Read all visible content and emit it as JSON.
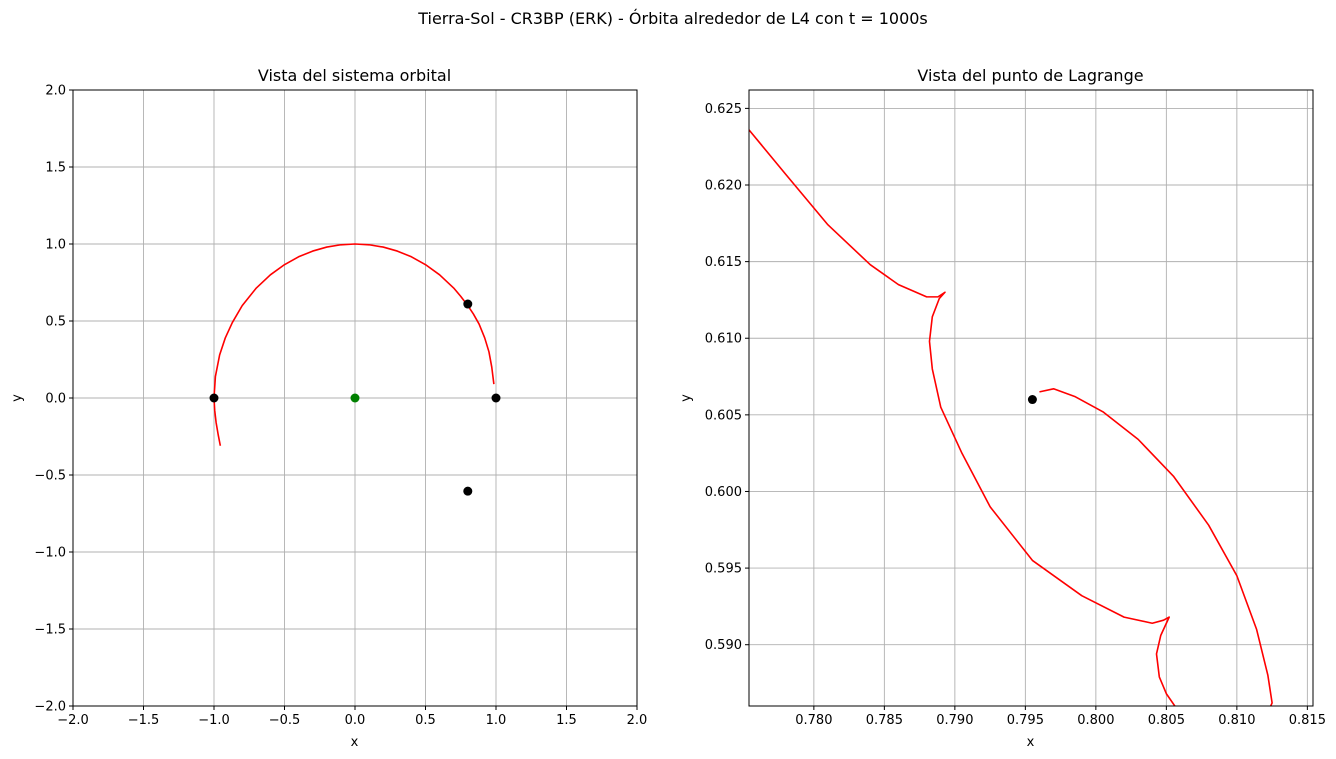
{
  "figure": {
    "suptitle": "Tierra-Sol - CR3BP (ERK) - Órbita alrededor de L4 con t = 1000s"
  },
  "colors": {
    "trajectory": "#ff0000",
    "lagrange_points": "#000000",
    "barycenter": "#008000",
    "grid": "#b0b0b0",
    "axes": "#000000"
  },
  "chart_data": [
    {
      "type": "line",
      "title": "Vista del sistema orbital",
      "xlabel": "x",
      "ylabel": "y",
      "xlim": [
        -2.0,
        2.0
      ],
      "ylim": [
        -2.0,
        2.0
      ],
      "xticks": [
        -2.0,
        -1.5,
        -1.0,
        -0.5,
        0.0,
        0.5,
        1.0,
        1.5,
        2.0
      ],
      "yticks": [
        -2.0,
        -1.5,
        -1.0,
        -0.5,
        0.0,
        0.5,
        1.0,
        1.5,
        2.0
      ],
      "xtick_labels": [
        "−2.0",
        "−1.5",
        "−1.0",
        "−0.5",
        "0.0",
        "0.5",
        "1.0",
        "1.5",
        "2.0"
      ],
      "ytick_labels": [
        "−2.0",
        "−1.5",
        "−1.0",
        "−0.5",
        "0.0",
        "0.5",
        "1.0",
        "1.5",
        "2.0"
      ],
      "grid": true,
      "series": [
        {
          "kind": "line",
          "color": "#ff0000",
          "x": [
            0.985,
            0.97,
            0.95,
            0.92,
            0.88,
            0.84,
            0.8,
            0.75,
            0.7,
            0.6,
            0.5,
            0.4,
            0.3,
            0.2,
            0.1,
            0.0,
            -0.1,
            -0.2,
            -0.3,
            -0.4,
            -0.5,
            -0.6,
            -0.7,
            -0.8,
            -0.87,
            -0.92,
            -0.96,
            -0.99,
            -1.0,
            -0.995,
            -0.985,
            -0.97,
            -0.955
          ],
          "y": [
            0.09,
            0.2,
            0.3,
            0.39,
            0.48,
            0.545,
            0.6,
            0.66,
            0.714,
            0.8,
            0.866,
            0.917,
            0.954,
            0.98,
            0.995,
            1.0,
            0.995,
            0.98,
            0.954,
            0.917,
            0.866,
            0.8,
            0.714,
            0.6,
            0.49,
            0.39,
            0.28,
            0.14,
            0.0,
            -0.08,
            -0.16,
            -0.24,
            -0.31
          ]
        },
        {
          "kind": "points",
          "color": "#000000",
          "x": [
            0.8,
            -1.0,
            1.0,
            0.8
          ],
          "y": [
            0.61,
            0.0,
            0.0,
            -0.605
          ]
        },
        {
          "kind": "points",
          "color": "#008000",
          "x": [
            0.0
          ],
          "y": [
            0.0
          ]
        }
      ]
    },
    {
      "type": "line",
      "title": "Vista del punto de Lagrange",
      "xlabel": "x",
      "ylabel": "y",
      "xlim": [
        0.7754,
        0.8154
      ],
      "ylim": [
        0.586,
        0.6262
      ],
      "xticks": [
        0.78,
        0.785,
        0.79,
        0.795,
        0.8,
        0.805,
        0.81,
        0.815
      ],
      "yticks": [
        0.59,
        0.595,
        0.6,
        0.605,
        0.61,
        0.615,
        0.62,
        0.625
      ],
      "xtick_labels": [
        "0.780",
        "0.785",
        "0.790",
        "0.795",
        "0.800",
        "0.805",
        "0.810",
        "0.815"
      ],
      "ytick_labels": [
        "0.590",
        "0.595",
        "0.600",
        "0.605",
        "0.610",
        "0.615",
        "0.620",
        "0.625"
      ],
      "grid": true,
      "series": [
        {
          "kind": "line",
          "color": "#ff0000",
          "x": [
            0.7754,
            0.778,
            0.781,
            0.784,
            0.786,
            0.788,
            0.7888,
            0.7893,
            0.7889,
            0.7884,
            0.7882,
            0.7884,
            0.789,
            0.7905,
            0.7925,
            0.7955,
            0.799,
            0.802,
            0.804,
            0.8048,
            0.8052,
            0.805,
            0.8046,
            0.8043,
            0.8045,
            0.805,
            0.8056
          ],
          "y": [
            0.6236,
            0.6207,
            0.6174,
            0.6148,
            0.6135,
            0.6127,
            0.6127,
            0.613,
            0.6126,
            0.6114,
            0.6098,
            0.608,
            0.6055,
            0.6025,
            0.599,
            0.5955,
            0.5932,
            0.5918,
            0.5914,
            0.5916,
            0.5918,
            0.5914,
            0.5906,
            0.5894,
            0.5879,
            0.5868,
            0.586
          ]
        },
        {
          "kind": "line",
          "color": "#ff0000",
          "x": [
            0.796,
            0.797,
            0.7985,
            0.8005,
            0.803,
            0.8055,
            0.808,
            0.81,
            0.8114,
            0.8122,
            0.8125,
            0.8124
          ],
          "y": [
            0.6065,
            0.6067,
            0.6062,
            0.6052,
            0.6034,
            0.601,
            0.5978,
            0.5945,
            0.591,
            0.588,
            0.5862,
            0.586
          ]
        },
        {
          "kind": "points",
          "color": "#000000",
          "x": [
            0.7955
          ],
          "y": [
            0.606
          ]
        }
      ]
    }
  ]
}
